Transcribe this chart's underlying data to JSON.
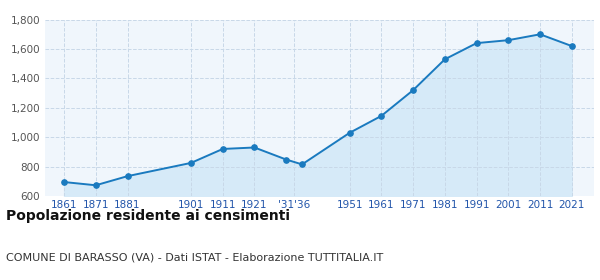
{
  "years": [
    1861,
    1871,
    1881,
    1901,
    1911,
    1921,
    1931,
    1936,
    1951,
    1961,
    1971,
    1981,
    1991,
    2001,
    2011,
    2021
  ],
  "population": [
    695,
    673,
    735,
    825,
    920,
    930,
    848,
    815,
    1030,
    1145,
    1320,
    1530,
    1640,
    1660,
    1700,
    1620
  ],
  "xlim": [
    1855,
    2028
  ],
  "ylim": [
    600,
    1800
  ],
  "yticks": [
    600,
    800,
    1000,
    1200,
    1400,
    1600,
    1800
  ],
  "x_tick_positions": [
    1861,
    1871,
    1881,
    1901,
    1911,
    1921,
    1933.5,
    1951,
    1961,
    1971,
    1981,
    1991,
    2001,
    2011,
    2021
  ],
  "x_tick_labels": [
    "1861",
    "1871",
    "1881",
    "1901",
    "1911",
    "1921",
    "'31'36",
    "1951",
    "1961",
    "1971",
    "1981",
    "1991",
    "2001",
    "2011",
    "2021"
  ],
  "line_color": "#1a7abf",
  "fill_color": "#d6eaf8",
  "marker_color": "#1a7abf",
  "grid_color": "#c8d8e8",
  "background_color": "#f0f6fc",
  "title": "Popolazione residente ai censimenti",
  "subtitle": "COMUNE DI BARASSO (VA) - Dati ISTAT - Elaborazione TUTTITALIA.IT",
  "title_fontsize": 10,
  "subtitle_fontsize": 8
}
